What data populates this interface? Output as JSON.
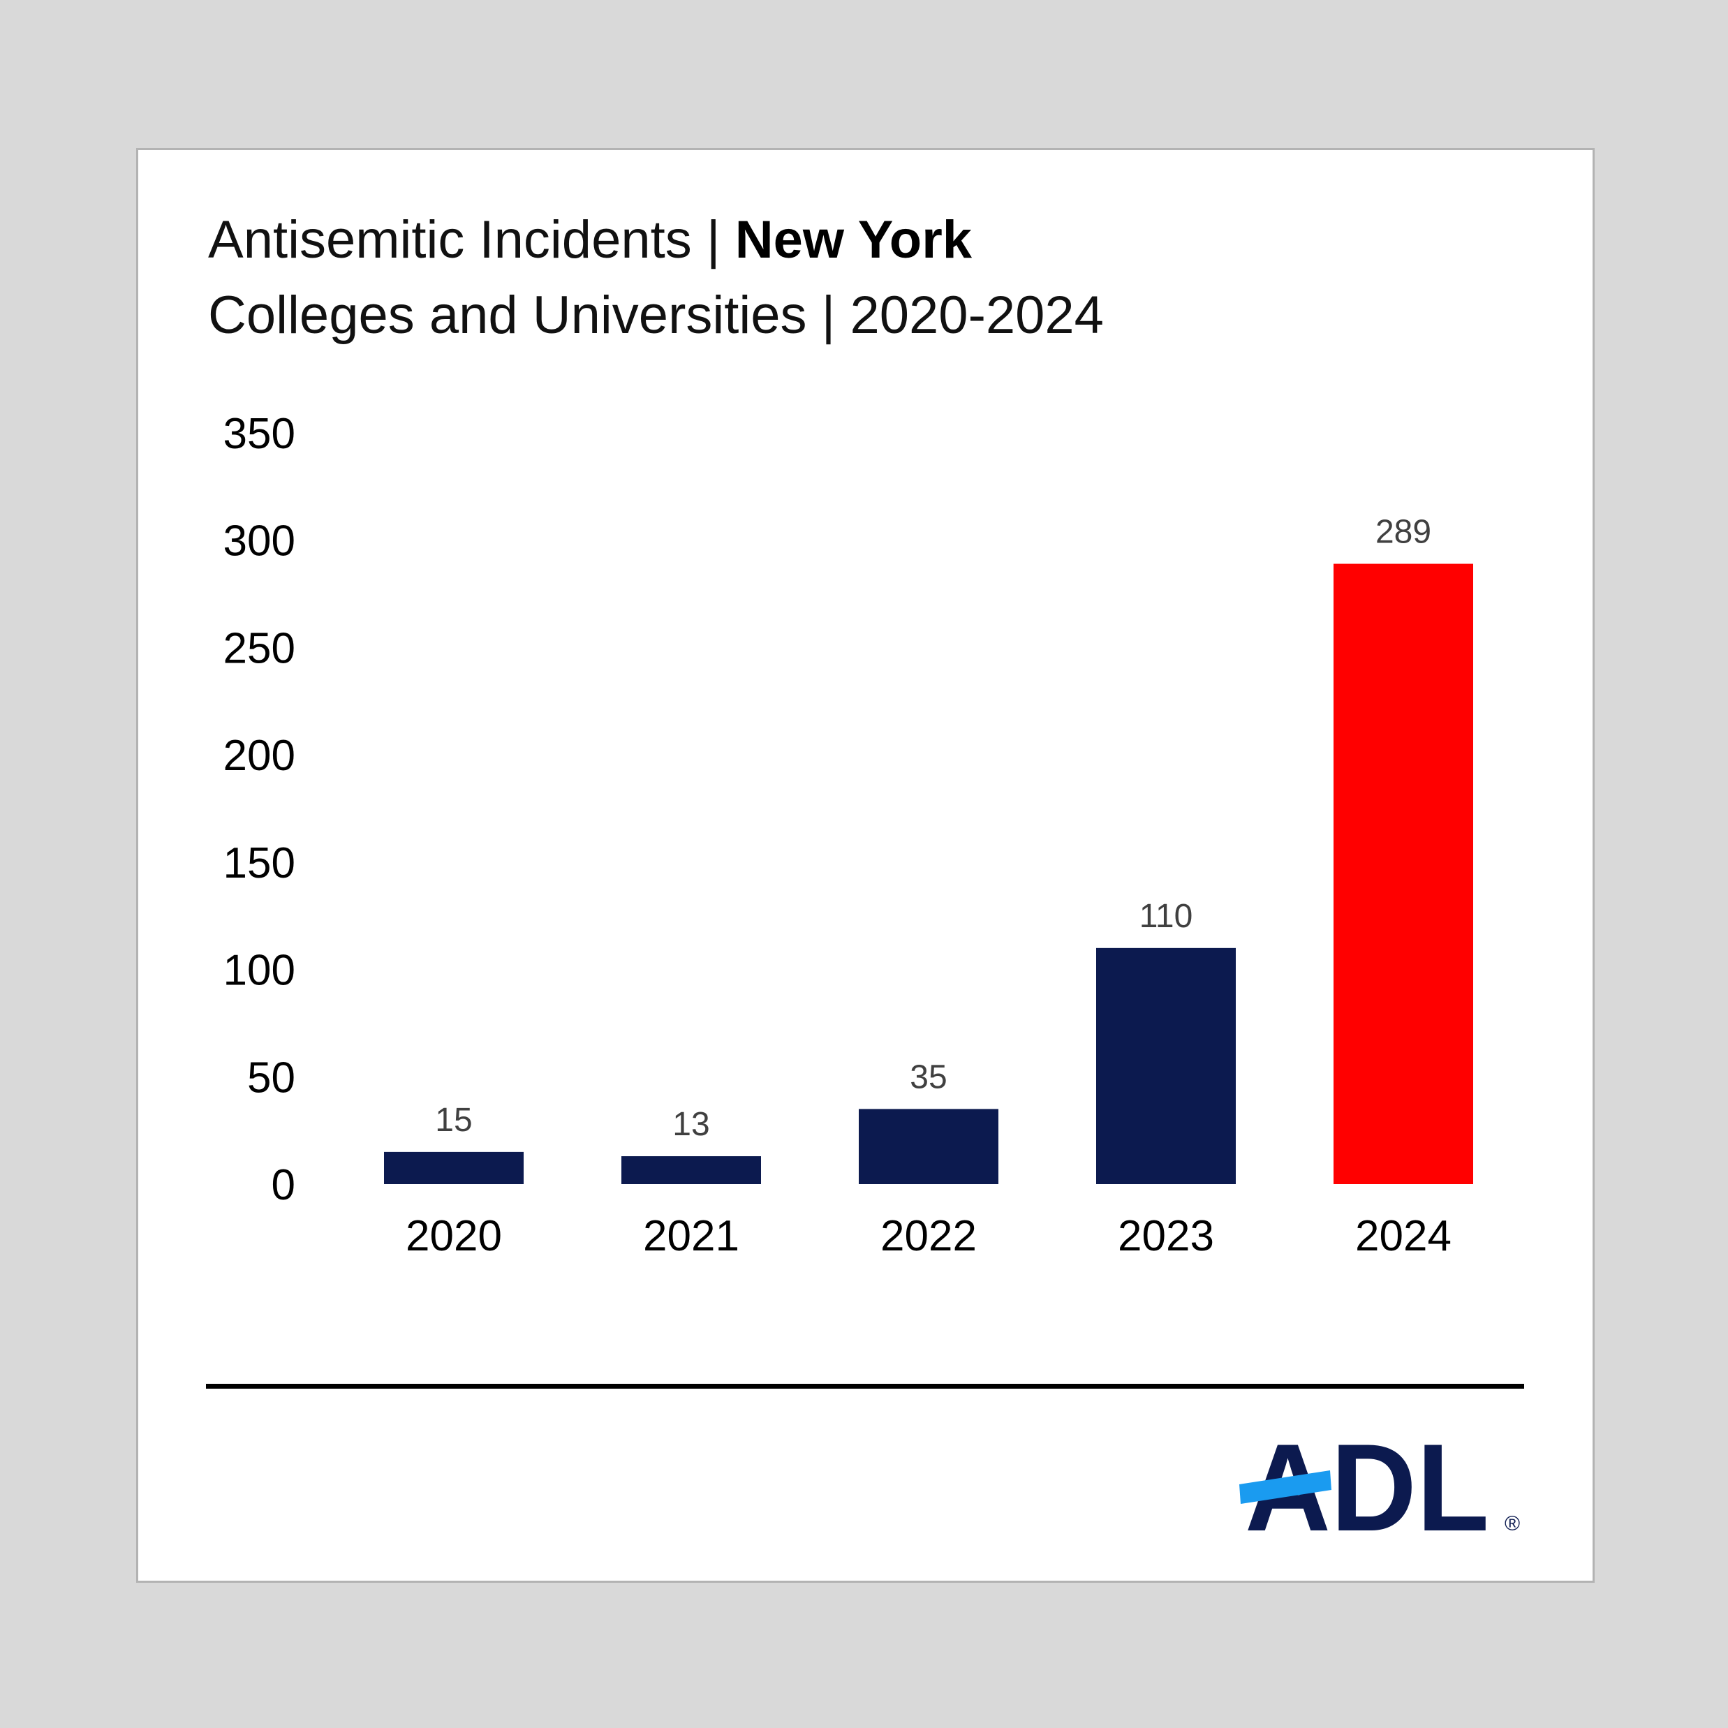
{
  "title": {
    "line1_prefix": "Antisemitic Incidents | ",
    "line1_bold": "New York",
    "line2": "Colleges and Universities | 2020-2024"
  },
  "chart_data": {
    "type": "bar",
    "categories": [
      "2020",
      "2021",
      "2022",
      "2023",
      "2024"
    ],
    "values": [
      15,
      13,
      35,
      110,
      289
    ],
    "data_labels": [
      "15",
      "13",
      "35",
      "110",
      "289"
    ],
    "bar_colors": [
      "#0c1a4f",
      "#0c1a4f",
      "#0c1a4f",
      "#0c1a4f",
      "#ff0000"
    ],
    "ylim": [
      0,
      350
    ],
    "yticks": [
      "0",
      "50",
      "100",
      "150",
      "200",
      "250",
      "300",
      "350"
    ],
    "grid": false,
    "legend": "none",
    "title": "Antisemitic Incidents | New York Colleges and Universities | 2020-2024",
    "xlabel": "",
    "ylabel": ""
  },
  "logo": {
    "text": "ADL",
    "registered": "®",
    "colors": {
      "letters": "#0c1a4f",
      "slash": "#1a9bf0"
    }
  }
}
